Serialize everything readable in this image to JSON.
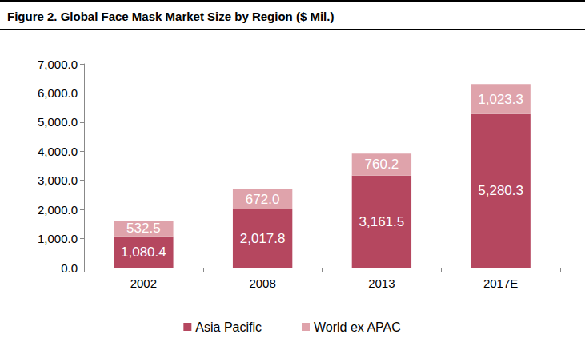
{
  "chart_data": {
    "type": "bar",
    "title": "Figure 2. Global Face Mask Market Size by Region ($ Mil.)",
    "categories": [
      "2002",
      "2008",
      "2013",
      "2017E"
    ],
    "series": [
      {
        "name": "Asia Pacific",
        "color": "#b5475f",
        "values": [
          1080.4,
          2017.8,
          3161.5,
          5280.3
        ],
        "value_labels": [
          "1,080.4",
          "2,017.8",
          "3,161.5",
          "5,280.3"
        ]
      },
      {
        "name": "World ex APAC",
        "color": "#dfa3ab",
        "values": [
          532.5,
          672.0,
          760.2,
          1023.3
        ],
        "value_labels": [
          "532.5",
          "672.0",
          "760.2",
          "1,023.3"
        ]
      }
    ],
    "ylim": [
      0,
      7000
    ],
    "yticks": [
      {
        "value": 0,
        "label": "0.0"
      },
      {
        "value": 1000,
        "label": "1,000.0"
      },
      {
        "value": 2000,
        "label": "2,000.0"
      },
      {
        "value": 3000,
        "label": "3,000.0"
      },
      {
        "value": 4000,
        "label": "4,000.0"
      },
      {
        "value": 5000,
        "label": "5,000.0"
      },
      {
        "value": 6000,
        "label": "6,000.0"
      },
      {
        "value": 7000,
        "label": "7,000.0"
      }
    ],
    "stacked": true,
    "data_labels": true,
    "legend": "bottom",
    "grid": false
  }
}
